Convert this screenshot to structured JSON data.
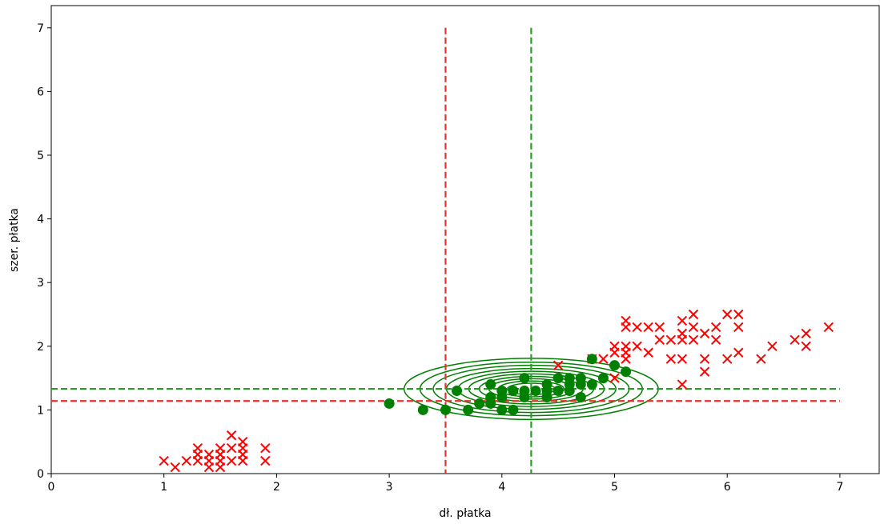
{
  "chart_data": {
    "type": "scatter",
    "title": "",
    "xlabel": "dł. płatka",
    "ylabel": "szer. płatka",
    "xlim": [
      0,
      7.3
    ],
    "ylim": [
      0,
      7.35
    ],
    "xticks": [
      0,
      1,
      2,
      3,
      4,
      5,
      6,
      7
    ],
    "yticks": [
      0,
      1,
      2,
      3,
      4,
      5,
      6,
      7
    ],
    "grid": false,
    "legend": "none",
    "series": [
      {
        "marker": "x",
        "color": "#ff0000",
        "points": [
          [
            1.0,
            0.2
          ],
          [
            1.1,
            0.1
          ],
          [
            1.2,
            0.2
          ],
          [
            1.3,
            0.2
          ],
          [
            1.3,
            0.3
          ],
          [
            1.3,
            0.4
          ],
          [
            1.4,
            0.2
          ],
          [
            1.4,
            0.3
          ],
          [
            1.4,
            0.1
          ],
          [
            1.5,
            0.2
          ],
          [
            1.5,
            0.1
          ],
          [
            1.5,
            0.4
          ],
          [
            1.5,
            0.3
          ],
          [
            1.6,
            0.2
          ],
          [
            1.6,
            0.6
          ],
          [
            1.6,
            0.4
          ],
          [
            1.7,
            0.2
          ],
          [
            1.7,
            0.3
          ],
          [
            1.7,
            0.4
          ],
          [
            1.7,
            0.5
          ],
          [
            1.9,
            0.2
          ],
          [
            1.9,
            0.4
          ],
          [
            4.5,
            1.7
          ],
          [
            4.8,
            1.8
          ],
          [
            4.9,
            1.8
          ],
          [
            5.0,
            1.5
          ],
          [
            5.0,
            1.9
          ],
          [
            5.0,
            2.0
          ],
          [
            5.1,
            1.8
          ],
          [
            5.1,
            1.9
          ],
          [
            5.1,
            2.0
          ],
          [
            5.1,
            2.3
          ],
          [
            5.1,
            2.4
          ],
          [
            5.2,
            2.0
          ],
          [
            5.2,
            2.3
          ],
          [
            5.3,
            1.9
          ],
          [
            5.3,
            2.3
          ],
          [
            5.4,
            2.1
          ],
          [
            5.4,
            2.3
          ],
          [
            5.5,
            1.8
          ],
          [
            5.5,
            2.1
          ],
          [
            5.6,
            1.4
          ],
          [
            5.6,
            1.8
          ],
          [
            5.6,
            2.1
          ],
          [
            5.6,
            2.2
          ],
          [
            5.6,
            2.4
          ],
          [
            5.7,
            2.1
          ],
          [
            5.7,
            2.3
          ],
          [
            5.7,
            2.5
          ],
          [
            5.8,
            1.6
          ],
          [
            5.8,
            1.8
          ],
          [
            5.8,
            2.2
          ],
          [
            5.9,
            2.1
          ],
          [
            5.9,
            2.3
          ],
          [
            6.0,
            1.8
          ],
          [
            6.0,
            2.5
          ],
          [
            6.1,
            1.9
          ],
          [
            6.1,
            2.3
          ],
          [
            6.1,
            2.5
          ],
          [
            6.3,
            1.8
          ],
          [
            6.4,
            2.0
          ],
          [
            6.6,
            2.1
          ],
          [
            6.7,
            2.0
          ],
          [
            6.7,
            2.2
          ],
          [
            6.9,
            2.3
          ]
        ]
      },
      {
        "marker": "o",
        "color": "#008000",
        "points": [
          [
            3.0,
            1.1
          ],
          [
            3.3,
            1.0
          ],
          [
            3.5,
            1.0
          ],
          [
            3.6,
            1.3
          ],
          [
            3.7,
            1.0
          ],
          [
            3.8,
            1.1
          ],
          [
            3.9,
            1.1
          ],
          [
            3.9,
            1.2
          ],
          [
            3.9,
            1.4
          ],
          [
            4.0,
            1.0
          ],
          [
            4.0,
            1.2
          ],
          [
            4.0,
            1.3
          ],
          [
            4.1,
            1.0
          ],
          [
            4.1,
            1.3
          ],
          [
            4.2,
            1.2
          ],
          [
            4.2,
            1.3
          ],
          [
            4.2,
            1.5
          ],
          [
            4.3,
            1.3
          ],
          [
            4.4,
            1.2
          ],
          [
            4.4,
            1.3
          ],
          [
            4.4,
            1.4
          ],
          [
            4.5,
            1.3
          ],
          [
            4.5,
            1.5
          ],
          [
            4.6,
            1.3
          ],
          [
            4.6,
            1.4
          ],
          [
            4.6,
            1.5
          ],
          [
            4.7,
            1.2
          ],
          [
            4.7,
            1.4
          ],
          [
            4.7,
            1.5
          ],
          [
            4.8,
            1.4
          ],
          [
            4.8,
            1.8
          ],
          [
            4.9,
            1.5
          ],
          [
            5.0,
            1.7
          ],
          [
            5.1,
            1.6
          ]
        ]
      }
    ],
    "reference_lines": [
      {
        "orientation": "vertical",
        "value": 3.5,
        "color": "#e8302f",
        "style": "dashed"
      },
      {
        "orientation": "horizontal",
        "value": 1.14,
        "color": "#e8302f",
        "style": "dashed"
      },
      {
        "orientation": "vertical",
        "value": 4.26,
        "color": "#2e9a2e",
        "style": "dashed"
      },
      {
        "orientation": "horizontal",
        "value": 1.33,
        "color": "#2e9a2e",
        "style": "dashed"
      }
    ],
    "contours": {
      "color": "#008000",
      "center": [
        4.26,
        1.33
      ],
      "sd_x": 0.47,
      "sd_y": 0.2,
      "levels": [
        2.4,
        2.1,
        1.85,
        1.6,
        1.38,
        1.18,
        0.98,
        0.8,
        0.62,
        0.45
      ]
    }
  }
}
